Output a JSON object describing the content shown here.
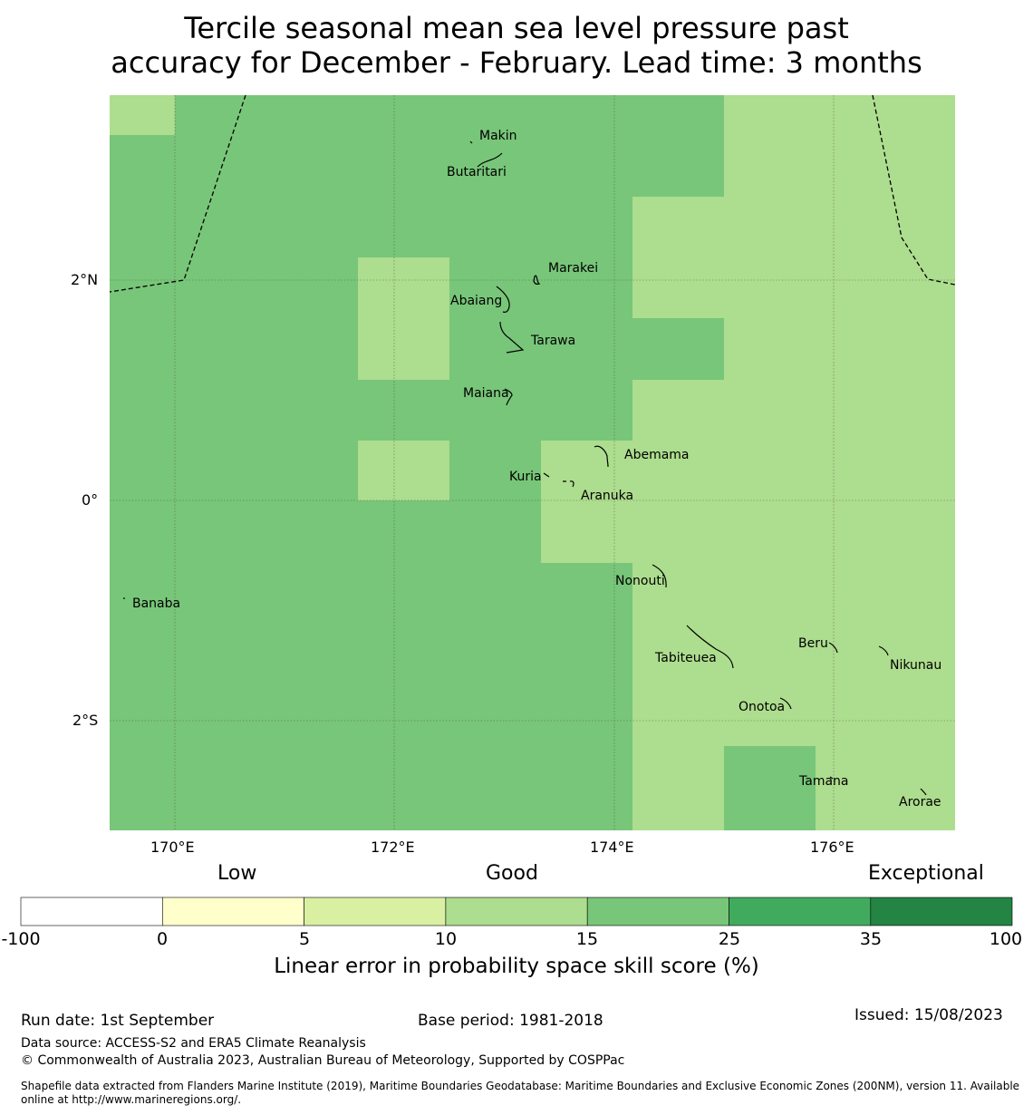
{
  "title": {
    "line1": "Tercile seasonal mean sea level pressure past",
    "line2": "accuracy for December - February. Lead time: 3 months"
  },
  "map": {
    "x_ticks": [
      "170°E",
      "172°E",
      "174°E",
      "176°E"
    ],
    "y_ticks": [
      "2°N",
      "0°",
      "2°S"
    ],
    "colors": {
      "band_15_25": "#78c679",
      "band_10_15": "#addd8e",
      "grid": "#444444",
      "boundary": "#000000"
    },
    "places": [
      {
        "name": "Makin"
      },
      {
        "name": "Butaritari"
      },
      {
        "name": "Marakei"
      },
      {
        "name": "Abaiang"
      },
      {
        "name": "Tarawa"
      },
      {
        "name": "Maiana"
      },
      {
        "name": "Abemama"
      },
      {
        "name": "Kuria"
      },
      {
        "name": "Aranuka"
      },
      {
        "name": "Nonouti"
      },
      {
        "name": "Banaba"
      },
      {
        "name": "Beru"
      },
      {
        "name": "Tabiteuea"
      },
      {
        "name": "Nikunau"
      },
      {
        "name": "Onotoa"
      },
      {
        "name": "Tamana"
      },
      {
        "name": "Arorae"
      }
    ]
  },
  "colorbar": {
    "categories": {
      "low": "Low",
      "good": "Good",
      "exceptional": "Exceptional"
    },
    "ticks": [
      "-100",
      "0",
      "5",
      "10",
      "15",
      "25",
      "35",
      "100"
    ],
    "colors": [
      "#ffffff",
      "#ffffcc",
      "#d9f0a3",
      "#addd8e",
      "#78c679",
      "#41ab5d",
      "#238443"
    ],
    "label": "Linear error in probability space skill score (%)"
  },
  "footer": {
    "run_date": "Run date: 1st September",
    "base_period": "Base period: 1981-2018",
    "issued": "Issued: 15/08/2023",
    "data_source": "Data source: ACCESS-S2 and ERA5 Climate Reanalysis",
    "copyright": "© Commonwealth of Australia 2023, Australian Bureau of Meteorology, Supported by COSPPac",
    "shapefile": "Shapefile data extracted from Flanders Marine Institute (2019), Maritime Boundaries Geodatabase: Maritime Boundaries and Exclusive Economic Zones (200NM), version 11. Available online at http://www.marineregions.org/."
  }
}
